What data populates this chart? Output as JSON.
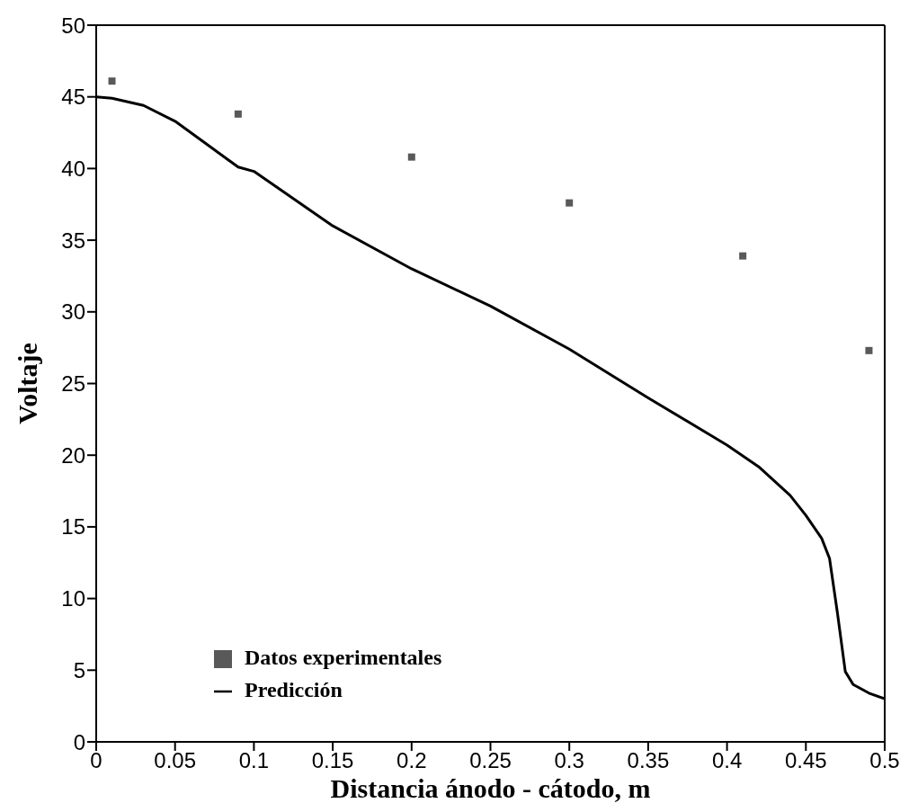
{
  "chart_data": {
    "type": "line",
    "xlabel": "Distancia ánodo - cátodo, m",
    "ylabel": "Voltaje",
    "xlim": [
      0,
      0.5
    ],
    "xticks": [
      {
        "value": 0,
        "label": "0"
      },
      0.05,
      0.1,
      0.15,
      0.2,
      0.25,
      0.3,
      0.35,
      0.4,
      0.45,
      0.5
    ],
    "ylim": [
      0,
      50
    ],
    "yticks": [
      0,
      5,
      10,
      15,
      20,
      25,
      30,
      35,
      40,
      45,
      50
    ],
    "grid": false,
    "legend": "bottom left",
    "series": [
      {
        "name": "Predicción",
        "type": "line",
        "color": "#000000",
        "marker": "none",
        "line_style": "solid",
        "x": [
          0,
          0.01,
          0.03,
          0.05,
          0.07,
          0.09,
          0.1,
          0.15,
          0.2,
          0.25,
          0.3,
          0.35,
          0.4,
          0.42,
          0.44,
          0.45,
          0.46,
          0.465,
          0.47,
          0.475,
          0.48,
          0.49,
          0.5
        ],
        "values": [
          45,
          44.9,
          44.4,
          43.3,
          41.7,
          40.1,
          39.8,
          36,
          33,
          30.4,
          27.4,
          24,
          20.7,
          19.2,
          17.2,
          15.8,
          14.2,
          12.8,
          9,
          4.9,
          4,
          3.4,
          3
        ]
      },
      {
        "name": "Datos experimentales",
        "type": "scatter",
        "color": "#595959",
        "marker": "square",
        "x": [
          0.01,
          0.09,
          0.2,
          0.3,
          0.41,
          0.49
        ],
        "values": [
          46.1,
          43.8,
          40.8,
          37.6,
          33.9,
          27.3
        ]
      }
    ]
  }
}
